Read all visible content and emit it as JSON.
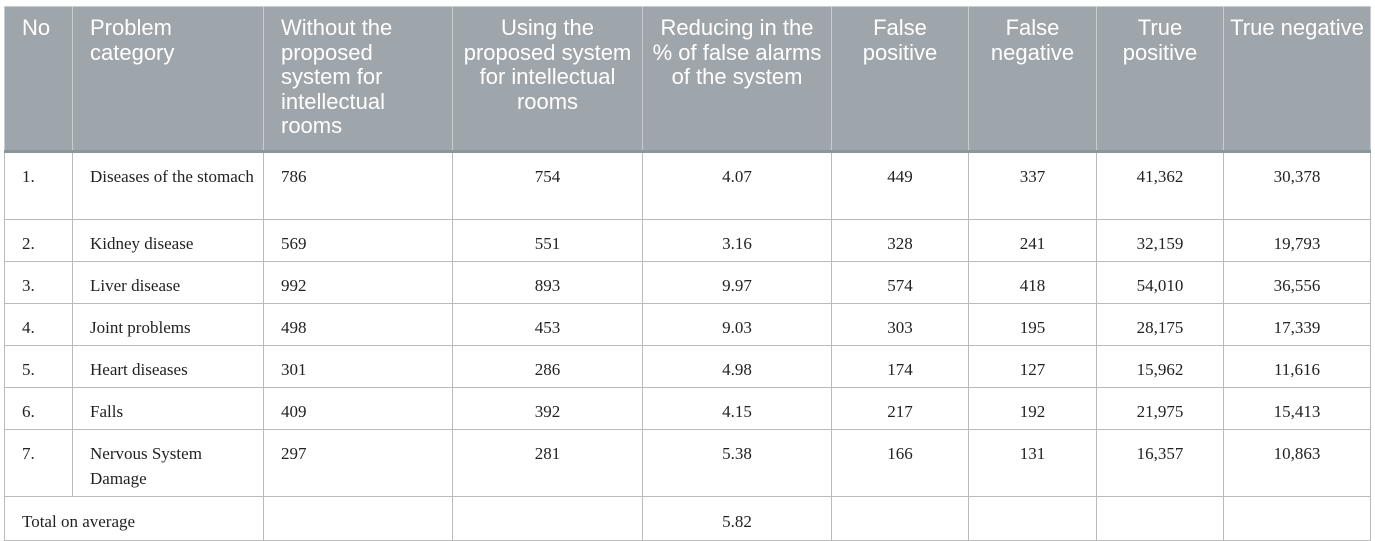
{
  "headers": [
    "No",
    "Problem category",
    "Without the proposed system for intellectual rooms",
    "Using the proposed system for intellectual rooms",
    "Reducing in the % of false alarms of the system",
    "False positive",
    "False negative",
    "True positive",
    "True negative"
  ],
  "rows": [
    [
      "1.",
      "Diseases of the stomach",
      "786",
      "754",
      "4.07",
      "449",
      "337",
      "41,362",
      "30,378"
    ],
    [
      "2.",
      "Kidney disease",
      "569",
      "551",
      "3.16",
      "328",
      "241",
      "32,159",
      "19,793"
    ],
    [
      "3.",
      "Liver disease",
      "992",
      "893",
      "9.97",
      "574",
      "418",
      "54,010",
      "36,556"
    ],
    [
      "4.",
      "Joint problems",
      "498",
      "453",
      "9.03",
      "303",
      "195",
      "28,175",
      "17,339"
    ],
    [
      "5.",
      "Heart diseases",
      "301",
      "286",
      "4.98",
      "174",
      "127",
      "15,962",
      "11,616"
    ],
    [
      "6.",
      "Falls",
      "409",
      "392",
      "4.15",
      "217",
      "192",
      "21,975",
      "15,413"
    ],
    [
      "7.",
      "Nervous System Damage",
      "297",
      "281",
      "5.38",
      "166",
      "131",
      "16,357",
      "10,863"
    ]
  ],
  "total": {
    "label": "Total on average",
    "reduction": "5.82"
  }
}
